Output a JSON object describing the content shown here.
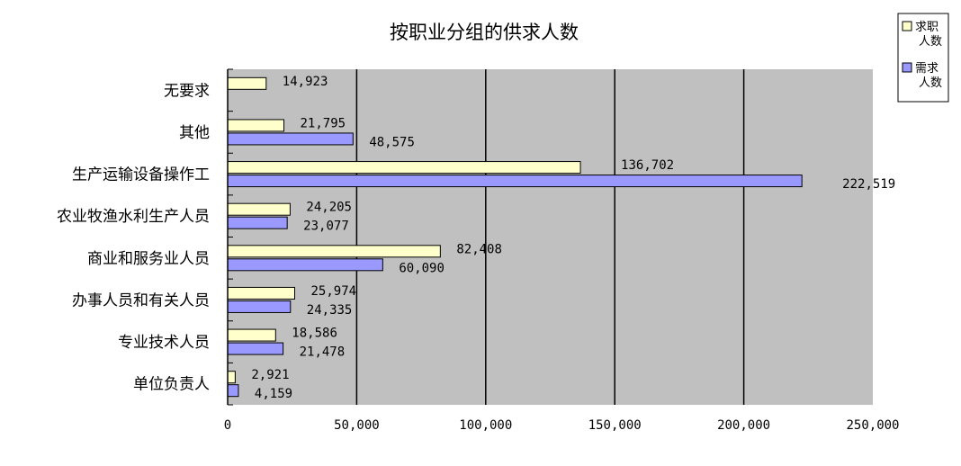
{
  "chart_data": {
    "type": "bar",
    "orientation": "horizontal",
    "title": "按职业分组的供求人数",
    "categories": [
      "无要求",
      "其他",
      "生产运输设备操作工",
      "农业牧渔水利生产人员",
      "商业和服务业人员",
      "办事人员和有关人员",
      "专业技术人员",
      "单位负责人"
    ],
    "series": [
      {
        "name": "求职人数",
        "color": "#ffffcc",
        "values": [
          14923,
          21795,
          136702,
          24205,
          82408,
          25974,
          18586,
          2921
        ],
        "labels": [
          "14,923",
          "21,795",
          "136,702",
          "24,205",
          "82,408",
          "25,974",
          "18,586",
          "2,921"
        ]
      },
      {
        "name": "需求人数",
        "color": "#9999ff",
        "values": [
          null,
          48575,
          222519,
          23077,
          60090,
          24335,
          21478,
          4159
        ],
        "labels": [
          "",
          "48,575",
          "222,519",
          "23,077",
          "60,090",
          "24,335",
          "21,478",
          "4,159"
        ]
      }
    ],
    "xlim": [
      0,
      250000
    ],
    "xticks": [
      0,
      50000,
      100000,
      150000,
      200000,
      250000
    ],
    "xtick_labels": [
      "0",
      "50,000",
      "100,000",
      "150,000",
      "200,000",
      "250,000"
    ],
    "grid": "vertical",
    "plot_background": "#c0c0c0",
    "legend_position": "top-right",
    "legend": [
      {
        "lines": [
          "求职",
          "人数"
        ],
        "color": "#ffffcc"
      },
      {
        "lines": [
          "需求",
          "人数"
        ],
        "color": "#9999ff"
      }
    ]
  }
}
